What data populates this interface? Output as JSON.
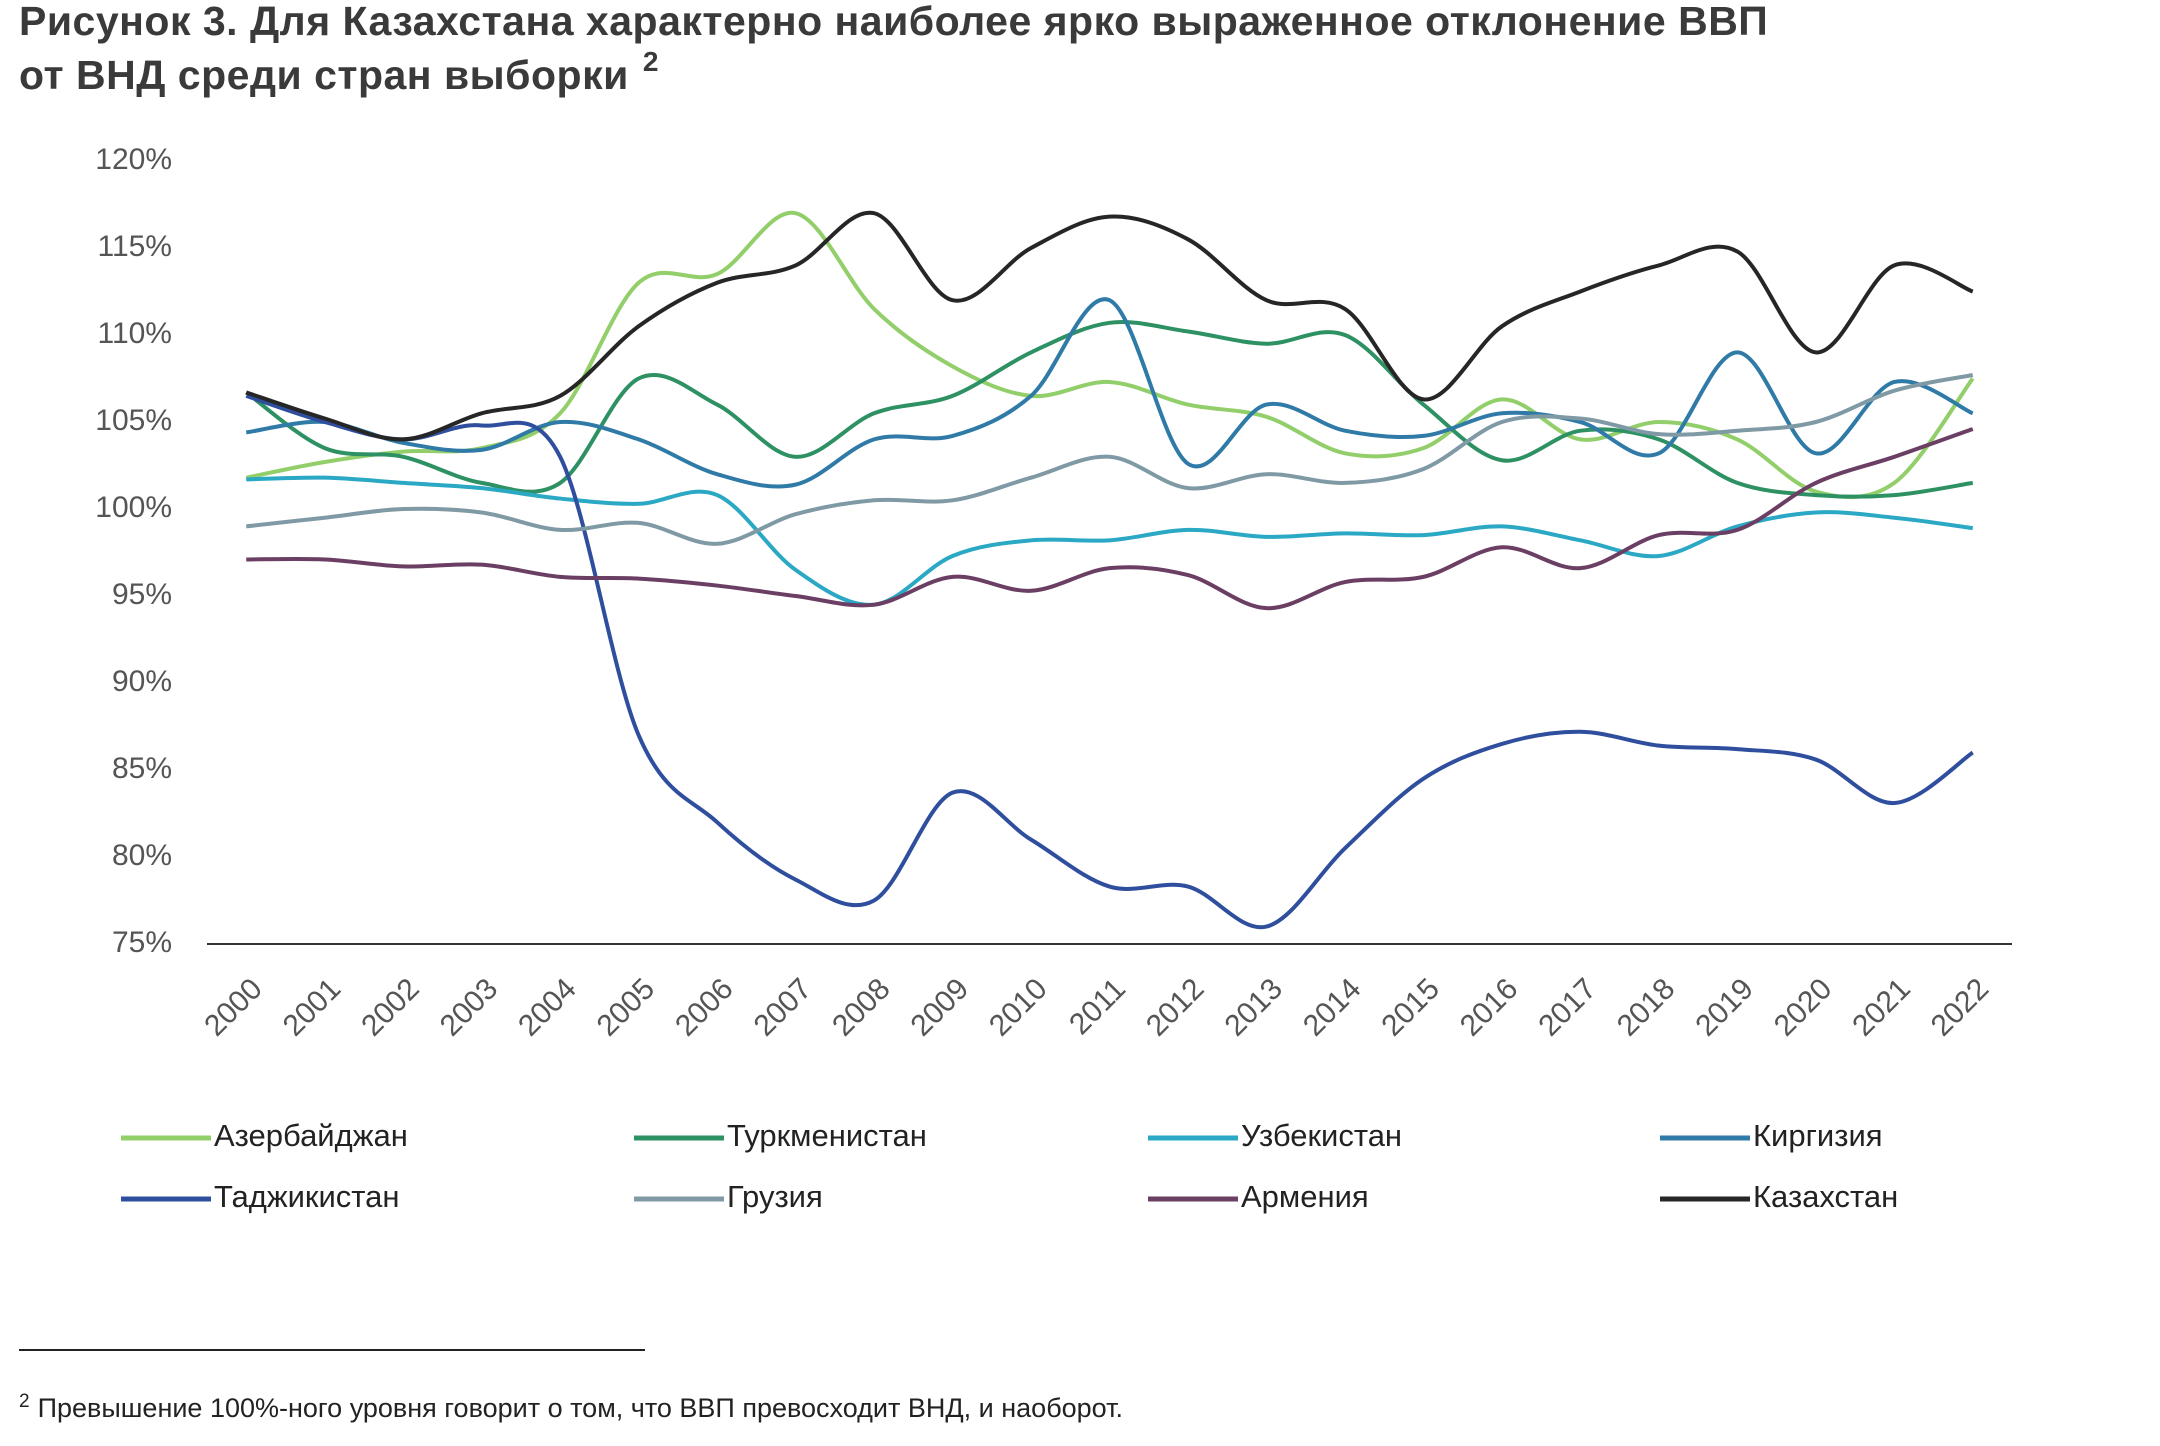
{
  "chart_data": {
    "type": "line",
    "title_lines": [
      "Рисунок 3. Для Казахстана характерно наиболее ярко выраженное отклонение ВВП",
      "от ВНД среди стран выборки"
    ],
    "title_note_marker": "2",
    "categories": [
      "2000",
      "2001",
      "2002",
      "2003",
      "2004",
      "2005",
      "2006",
      "2007",
      "2008",
      "2009",
      "2010",
      "2011",
      "2012",
      "2013",
      "2014",
      "2015",
      "2016",
      "2017",
      "2018",
      "2019",
      "2020",
      "2021",
      "2022"
    ],
    "ylim": [
      75,
      120
    ],
    "yticks": [
      {
        "value": 75,
        "label": "75%"
      },
      {
        "value": 80,
        "label": "80%"
      },
      {
        "value": 85,
        "label": "85%"
      },
      {
        "value": 90,
        "label": "90%"
      },
      {
        "value": 95,
        "label": "95%"
      },
      {
        "value": 100,
        "label": "100%"
      },
      {
        "value": 105,
        "label": "105%"
      },
      {
        "value": 110,
        "label": "110%"
      },
      {
        "value": 115,
        "label": "115%"
      },
      {
        "value": 120,
        "label": "120%"
      }
    ],
    "grid": false,
    "smooth": true,
    "series": [
      {
        "name": "Азербайджан",
        "color": "#92cf6a",
        "values": [
          101.8,
          102.7,
          103.3,
          103.5,
          105.5,
          113,
          113.5,
          117,
          111.5,
          108.2,
          106.5,
          107.3,
          106,
          105.3,
          103.2,
          103.5,
          106.3,
          104,
          105,
          104,
          101,
          101.5,
          107.5
        ]
      },
      {
        "name": "Туркменистан",
        "color": "#2e9163",
        "values": [
          106.7,
          103.5,
          103,
          101.5,
          101.5,
          107.5,
          106,
          103,
          105.5,
          106.5,
          109,
          110.7,
          110.2,
          109.5,
          110,
          106,
          102.8,
          104.5,
          104,
          101.5,
          100.8,
          100.8,
          101.5
        ]
      },
      {
        "name": "Узбекистан",
        "color": "#2aa8c4",
        "values": [
          101.7,
          101.8,
          101.5,
          101.2,
          100.6,
          100.3,
          100.8,
          96.5,
          94.5,
          97.3,
          98.2,
          98.2,
          98.8,
          98.4,
          98.6,
          98.5,
          99,
          98.2,
          97.3,
          99,
          99.8,
          99.5,
          98.9
        ]
      },
      {
        "name": "Киргизия",
        "color": "#2f7aa6",
        "values": [
          104.4,
          105,
          103.8,
          103.4,
          105,
          104,
          102,
          101.4,
          104,
          104.2,
          106.5,
          112,
          102.6,
          106,
          104.5,
          104.2,
          105.5,
          105,
          103.2,
          109,
          103.2,
          107.3,
          105.5
        ]
      },
      {
        "name": "Таджикистан",
        "color": "#2f4f9e",
        "values": [
          106.5,
          105,
          104,
          104.8,
          103,
          87,
          82,
          78.7,
          77.5,
          83.7,
          81,
          78.3,
          78.3,
          76,
          80.5,
          84.5,
          86.5,
          87.2,
          86.4,
          86.2,
          85.6,
          83.1,
          86
        ]
      },
      {
        "name": "Грузия",
        "color": "#7f9aa5",
        "values": [
          99,
          99.5,
          100,
          99.8,
          98.8,
          99.2,
          98,
          99.7,
          100.5,
          100.5,
          101.8,
          103,
          101.2,
          102,
          101.5,
          102.3,
          105,
          105.2,
          104.3,
          104.5,
          105,
          106.8,
          107.7
        ]
      },
      {
        "name": "Армения",
        "color": "#6b3f63",
        "values": [
          97.1,
          97.1,
          96.7,
          96.8,
          96.1,
          96,
          95.6,
          95,
          94.5,
          96.1,
          95.3,
          96.6,
          96.2,
          94.3,
          95.8,
          96.1,
          97.8,
          96.6,
          98.5,
          98.8,
          101.5,
          103,
          104.6
        ]
      },
      {
        "name": "Казахстан",
        "color": "#262626",
        "values": [
          106.7,
          105.2,
          104,
          105.5,
          106.5,
          110.5,
          113,
          114,
          117,
          112,
          115,
          116.8,
          115.5,
          112,
          111.5,
          106.3,
          110.5,
          112.5,
          114,
          114.8,
          109,
          114,
          112.5
        ]
      }
    ],
    "footnote_marker": "2",
    "footnote": "Превышение 100%-ного уровня говорит о том, что ВВП превосходит ВНД, и наоборот."
  }
}
